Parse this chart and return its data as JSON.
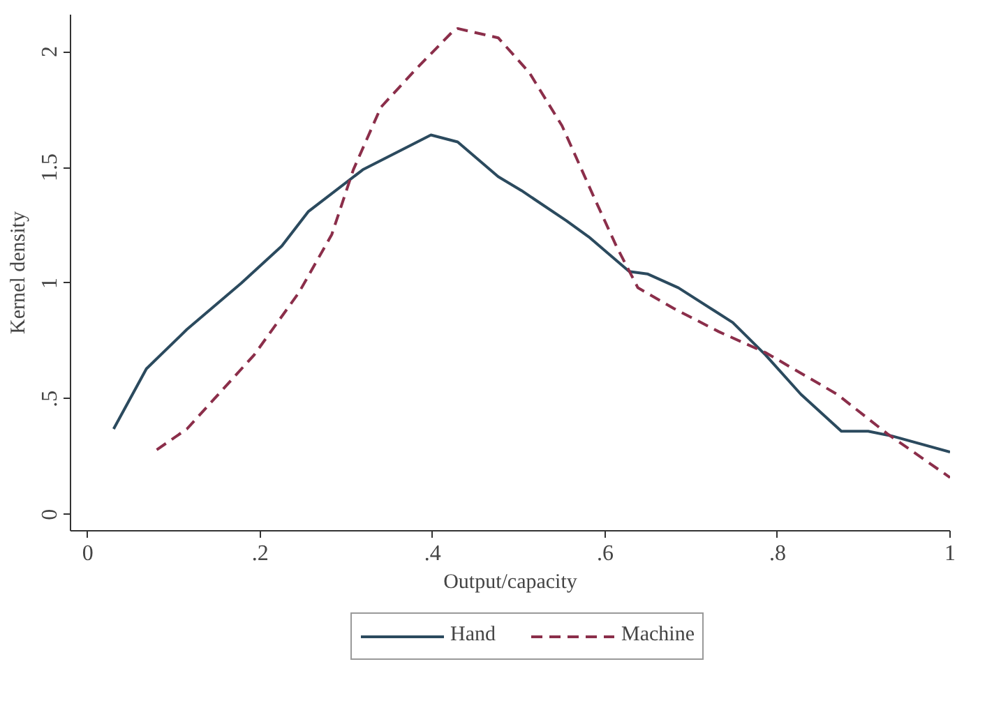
{
  "chart_data": {
    "type": "line",
    "xlabel": "Output/capacity",
    "ylabel": "Kernel density",
    "xlim": [
      -0.02,
      1.0
    ],
    "ylim": [
      -0.07,
      2.16
    ],
    "xticks": [
      0,
      {
        "value": 0.2,
        "label": ".2"
      },
      {
        "value": 0.4,
        "label": ".4"
      },
      {
        "value": 0.6,
        "label": ".6"
      },
      {
        "value": 0.8,
        "label": ".8"
      },
      1
    ],
    "yticks": [
      0,
      {
        "value": 0.5,
        "label": ".5"
      },
      1,
      {
        "value": 1.5,
        "label": "1.5"
      },
      2
    ],
    "legend": "bottom",
    "grid": false,
    "series": [
      {
        "name": "Hand",
        "color": "#2b4a5e",
        "line_style": "solid",
        "x": [
          0.03,
          0.068,
          0.115,
          0.178,
          0.225,
          0.256,
          0.319,
          0.377,
          0.398,
          0.429,
          0.476,
          0.503,
          0.555,
          0.581,
          0.628,
          0.649,
          0.685,
          0.727,
          0.748,
          0.786,
          0.827,
          0.874,
          0.905,
          0.932,
          1.0
        ],
        "values": [
          0.37,
          0.63,
          0.8,
          1.0,
          1.16,
          1.31,
          1.49,
          1.6,
          1.64,
          1.61,
          1.46,
          1.4,
          1.27,
          1.2,
          1.05,
          1.04,
          0.98,
          0.88,
          0.83,
          0.69,
          0.52,
          0.36,
          0.36,
          0.34,
          0.27
        ]
      },
      {
        "name": "Machine",
        "color": "#8b2e4a",
        "line_style": "dashed",
        "x": [
          0.08,
          0.115,
          0.193,
          0.245,
          0.283,
          0.308,
          0.34,
          0.382,
          0.424,
          0.429,
          0.476,
          0.512,
          0.55,
          0.586,
          0.613,
          0.638,
          0.68,
          0.732,
          0.786,
          0.869,
          0.927,
          1.0
        ],
        "values": [
          0.28,
          0.37,
          0.69,
          0.96,
          1.21,
          1.49,
          1.76,
          1.93,
          2.09,
          2.1,
          2.06,
          1.91,
          1.68,
          1.38,
          1.16,
          0.98,
          0.89,
          0.79,
          0.7,
          0.52,
          0.35,
          0.16
        ]
      }
    ]
  }
}
